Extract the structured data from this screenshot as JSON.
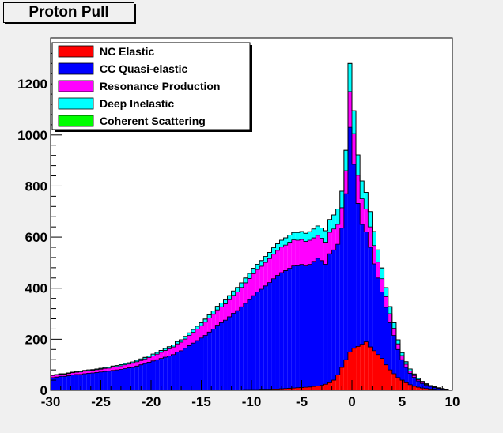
{
  "chart_data": {
    "type": "bar",
    "stacked": true,
    "title": "Proton Pull",
    "xlabel": "",
    "ylabel": "",
    "xlim": [
      -30,
      10
    ],
    "ylim": [
      0,
      1380
    ],
    "xticks": [
      -30,
      -25,
      -20,
      -15,
      -10,
      -5,
      0,
      5,
      10
    ],
    "yticks": [
      0,
      200,
      400,
      600,
      800,
      1000,
      1200
    ],
    "bin_width": 0.4,
    "legend_position": "top-left",
    "series_colors": [
      "#ff0000",
      "#0000ff",
      "#ff00ff",
      "#00ffff",
      "#00ff00"
    ],
    "bin_x": [
      -29.8,
      -29.4,
      -29,
      -28.6,
      -28.2,
      -27.8,
      -27.4,
      -27,
      -26.6,
      -26.2,
      -25.8,
      -25.4,
      -25,
      -24.6,
      -24.2,
      -23.8,
      -23.4,
      -23,
      -22.6,
      -22.2,
      -21.8,
      -21.4,
      -21,
      -20.6,
      -20.2,
      -19.8,
      -19.4,
      -19,
      -18.6,
      -18.2,
      -17.8,
      -17.4,
      -17,
      -16.6,
      -16.2,
      -15.8,
      -15.4,
      -15,
      -14.6,
      -14.2,
      -13.8,
      -13.4,
      -13,
      -12.6,
      -12.2,
      -11.8,
      -11.4,
      -11,
      -10.6,
      -10.2,
      -9.8,
      -9.4,
      -9,
      -8.6,
      -8.2,
      -7.8,
      -7.4,
      -7,
      -6.6,
      -6.2,
      -5.8,
      -5.4,
      -5,
      -4.6,
      -4.2,
      -3.8,
      -3.4,
      -3,
      -2.6,
      -2.2,
      -1.8,
      -1.4,
      -1,
      -0.6,
      -0.2,
      0.2,
      0.6,
      1,
      1.4,
      1.8,
      2.2,
      2.6,
      3,
      3.4,
      3.8,
      4.2,
      4.6,
      5,
      5.4,
      5.8,
      6.2,
      6.6,
      7,
      7.4,
      7.8,
      8.2,
      8.6,
      9,
      9.4,
      9.8
    ],
    "series": [
      {
        "name": "NC Elastic",
        "values": [
          0,
          0,
          0,
          0,
          0,
          0,
          0,
          0,
          0,
          0,
          0,
          0,
          0,
          0,
          0,
          0,
          0,
          0,
          0,
          0,
          0,
          0,
          0,
          0,
          0,
          0,
          0,
          0,
          0,
          0,
          0,
          0,
          0,
          0,
          0,
          0,
          0,
          0,
          0,
          0,
          0,
          0,
          0,
          0,
          0,
          2,
          2,
          2,
          3,
          3,
          3,
          3,
          4,
          4,
          4,
          5,
          5,
          6,
          7,
          8,
          9,
          10,
          11,
          12,
          13,
          15,
          17,
          20,
          24,
          30,
          40,
          60,
          90,
          120,
          150,
          165,
          172,
          180,
          190,
          170,
          155,
          140,
          125,
          100,
          80,
          65,
          50,
          40,
          30,
          22,
          16,
          12,
          9,
          7,
          5,
          4,
          3,
          2,
          2,
          1
        ]
      },
      {
        "name": "CC Quasi-elastic",
        "values": [
          50,
          52,
          55,
          55,
          57,
          60,
          62,
          62,
          65,
          67,
          68,
          70,
          72,
          74,
          75,
          78,
          80,
          82,
          85,
          88,
          90,
          95,
          100,
          105,
          110,
          115,
          120,
          125,
          130,
          135,
          140,
          150,
          155,
          165,
          175,
          185,
          195,
          205,
          215,
          228,
          240,
          255,
          265,
          275,
          288,
          300,
          310,
          325,
          338,
          352,
          368,
          382,
          392,
          405,
          418,
          432,
          445,
          455,
          462,
          470,
          478,
          478,
          482,
          475,
          480,
          490,
          500,
          488,
          470,
          505,
          510,
          512,
          545,
          650,
          880,
          720,
          560,
          470,
          430,
          390,
          340,
          300,
          260,
          225,
          185,
          150,
          110,
          80,
          60,
          45,
          35,
          25,
          18,
          13,
          10,
          7,
          5,
          3,
          2,
          1
        ]
      },
      {
        "name": "Resonance Production",
        "values": [
          8,
          8,
          8,
          8,
          9,
          9,
          9,
          10,
          10,
          10,
          10,
          11,
          11,
          12,
          12,
          13,
          13,
          14,
          15,
          15,
          16,
          17,
          17,
          18,
          19,
          20,
          22,
          24,
          26,
          28,
          30,
          32,
          34,
          36,
          40,
          42,
          45,
          48,
          52,
          55,
          58,
          60,
          62,
          64,
          67,
          70,
          73,
          76,
          80,
          83,
          86,
          88,
          90,
          92,
          94,
          96,
          98,
          100,
          100,
          102,
          102,
          100,
          98,
          96,
          95,
          92,
          90,
          88,
          86,
          84,
          82,
          78,
          80,
          90,
          140,
          120,
          110,
          100,
          90,
          80,
          72,
          62,
          52,
          42,
          35,
          28,
          22,
          16,
          12,
          9,
          7,
          5,
          4,
          3,
          2,
          1,
          1,
          1,
          0,
          0
        ]
      },
      {
        "name": "Deep Inelastic",
        "values": [
          2,
          2,
          2,
          2,
          2,
          2,
          3,
          3,
          3,
          3,
          3,
          3,
          3,
          4,
          4,
          4,
          4,
          5,
          5,
          5,
          5,
          6,
          6,
          6,
          6,
          7,
          7,
          7,
          8,
          8,
          8,
          9,
          9,
          10,
          10,
          11,
          11,
          12,
          12,
          13,
          13,
          14,
          15,
          15,
          16,
          17,
          18,
          18,
          19,
          20,
          21,
          21,
          22,
          23,
          24,
          25,
          26,
          27,
          28,
          28,
          29,
          30,
          31,
          32,
          33,
          35,
          37,
          40,
          45,
          50,
          55,
          60,
          65,
          80,
          110,
          90,
          80,
          70,
          65,
          60,
          55,
          48,
          42,
          35,
          28,
          22,
          16,
          12,
          10,
          8,
          6,
          5,
          4,
          3,
          2,
          2,
          1,
          1,
          1,
          0
        ]
      },
      {
        "name": "Coherent Scattering",
        "values": [
          0,
          0,
          0,
          0,
          0,
          0,
          0,
          0,
          0,
          0,
          0,
          0,
          0,
          0,
          0,
          0,
          0,
          0,
          0,
          0,
          0,
          0,
          0,
          0,
          0,
          0,
          0,
          0,
          0,
          0,
          0,
          0,
          0,
          0,
          0,
          0,
          0,
          0,
          0,
          0,
          0,
          0,
          0,
          0,
          0,
          0,
          0,
          0,
          0,
          0,
          0,
          0,
          0,
          0,
          0,
          0,
          0,
          0,
          0,
          0,
          0,
          0,
          0,
          0,
          0,
          0,
          0,
          0,
          0,
          0,
          0,
          0,
          0,
          0,
          0,
          0,
          0,
          0,
          0,
          0,
          0,
          0,
          0,
          0,
          0,
          0,
          0,
          0,
          0,
          0,
          0,
          0,
          0,
          0,
          0,
          0,
          0,
          0,
          0,
          0
        ]
      }
    ]
  }
}
